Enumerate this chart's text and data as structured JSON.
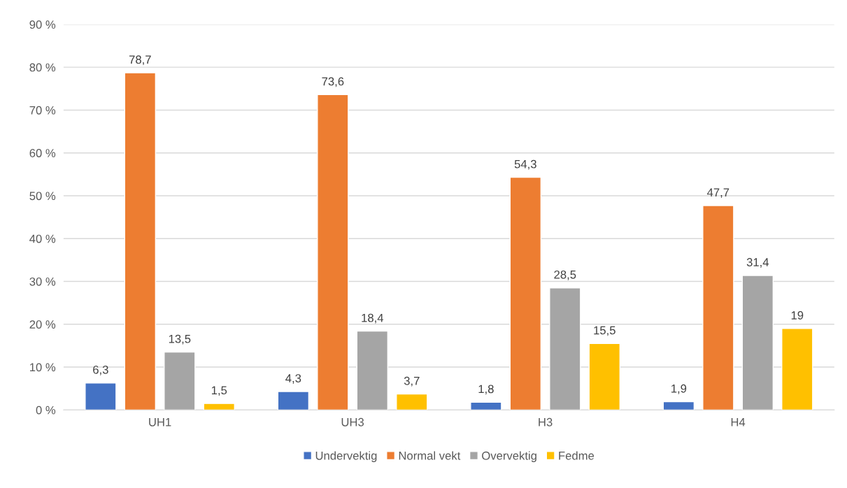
{
  "chart_data": {
    "type": "bar",
    "categories": [
      "UH1",
      "UH3",
      "H3",
      "H4"
    ],
    "series": [
      {
        "name": "Undervektig",
        "color": "#4472c4",
        "values": [
          6.3,
          4.3,
          1.8,
          1.9
        ],
        "value_labels": [
          "6,3",
          "4,3",
          "1,8",
          "1,9"
        ]
      },
      {
        "name": "Normal vekt",
        "color": "#ed7d31",
        "values": [
          78.7,
          73.6,
          54.3,
          47.7
        ],
        "value_labels": [
          "78,7",
          "73,6",
          "54,3",
          "47,7"
        ]
      },
      {
        "name": "Overvektig",
        "color": "#a5a5a5",
        "values": [
          13.5,
          18.4,
          28.5,
          31.4
        ],
        "value_labels": [
          "13,5",
          "18,4",
          "28,5",
          "31,4"
        ]
      },
      {
        "name": "Fedme",
        "color": "#ffc000",
        "values": [
          1.5,
          3.7,
          15.5,
          19
        ],
        "value_labels": [
          "1,5",
          "3,7",
          "15,5",
          "19"
        ]
      }
    ],
    "ylim": [
      0,
      90
    ],
    "yticks": [
      {
        "value": 0,
        "label": "0 %"
      },
      {
        "value": 10,
        "label": "10 %"
      },
      {
        "value": 20,
        "label": "20 %"
      },
      {
        "value": 30,
        "label": "30 %"
      },
      {
        "value": 40,
        "label": "40 %"
      },
      {
        "value": 50,
        "label": "50 %"
      },
      {
        "value": 60,
        "label": "60 %"
      },
      {
        "value": 70,
        "label": "70 %"
      },
      {
        "value": 80,
        "label": "80 %"
      },
      {
        "value": 90,
        "label": "90 %"
      }
    ],
    "grid": "y",
    "legend": "bottom"
  }
}
